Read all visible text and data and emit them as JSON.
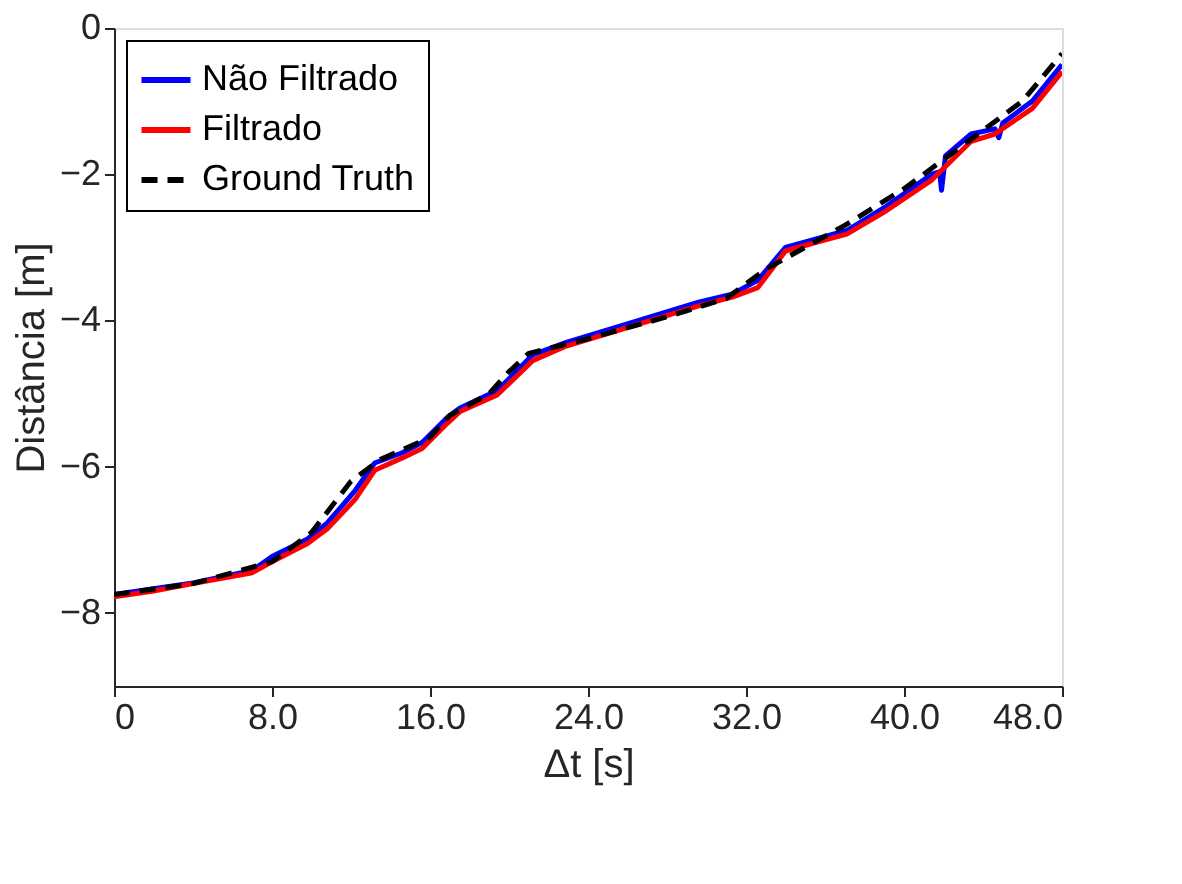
{
  "chart_data": {
    "type": "line",
    "xlabel": "Δt [s]",
    "ylabel": "Distância [m]",
    "xlim": [
      0,
      48
    ],
    "xticks": [
      0,
      {
        "value": 8,
        "label": "8.0"
      },
      {
        "value": 16,
        "label": "16.0"
      },
      {
        "value": 24,
        "label": "24.0"
      },
      {
        "value": 32,
        "label": "32.0"
      },
      {
        "value": 40,
        "label": "40.0"
      },
      {
        "value": 48,
        "label": "48.0"
      }
    ],
    "ylim": [
      -9,
      0
    ],
    "yticks": [
      -8,
      -6,
      -4,
      -2,
      0
    ],
    "grid": false,
    "legend": "top left",
    "series": [
      {
        "name": "Não Filtrado",
        "color": "#0000ff",
        "line_style": "solid",
        "x": [
          0,
          2,
          4,
          7,
          8,
          9.8,
          10.8,
          12.2,
          13.2,
          14.6,
          15.6,
          16.9,
          17.5,
          19.4,
          21.2,
          22.9,
          26.2,
          29.6,
          31.3,
          32.6,
          34.0,
          35.6,
          37.1,
          39.1,
          41.4,
          41.8,
          41.9,
          42.1,
          43.4,
          44.6,
          44.8,
          45.0,
          46.5,
          48
        ],
        "values": [
          -7.75,
          -7.67,
          -7.59,
          -7.42,
          -7.23,
          -6.99,
          -6.77,
          -6.33,
          -5.95,
          -5.81,
          -5.67,
          -5.32,
          -5.2,
          -4.96,
          -4.47,
          -4.3,
          -4.03,
          -3.75,
          -3.64,
          -3.45,
          -3.0,
          -2.88,
          -2.77,
          -2.44,
          -2.0,
          -1.97,
          -2.22,
          -1.75,
          -1.45,
          -1.38,
          -1.5,
          -1.3,
          -1.0,
          -0.5
        ]
      },
      {
        "name": "Filtrado",
        "color": "#ff0000",
        "line_style": "solid",
        "x": [
          0,
          2,
          4,
          7,
          8,
          9.8,
          10.8,
          12.2,
          13.2,
          14.6,
          15.6,
          16.9,
          17.5,
          19.4,
          21.2,
          22.9,
          26.2,
          29.6,
          31.3,
          32.6,
          34.0,
          35.6,
          37.1,
          39.1,
          41.4,
          43.4,
          44.6,
          46.5,
          48
        ],
        "values": [
          -7.78,
          -7.7,
          -7.6,
          -7.45,
          -7.3,
          -7.05,
          -6.85,
          -6.45,
          -6.05,
          -5.88,
          -5.75,
          -5.4,
          -5.25,
          -5.02,
          -4.55,
          -4.35,
          -4.08,
          -3.8,
          -3.68,
          -3.55,
          -3.05,
          -2.93,
          -2.82,
          -2.5,
          -2.08,
          -1.55,
          -1.45,
          -1.1,
          -0.6
        ]
      },
      {
        "name": "Ground Truth",
        "color": "#000000",
        "line_style": "dashed",
        "x": [
          0,
          4,
          8,
          10,
          12,
          13.5,
          16,
          17,
          19,
          20,
          21,
          24,
          28,
          31,
          33,
          35,
          37,
          40,
          42,
          44,
          46,
          48
        ],
        "values": [
          -7.75,
          -7.6,
          -7.3,
          -6.9,
          -6.2,
          -5.9,
          -5.6,
          -5.3,
          -5.0,
          -4.7,
          -4.45,
          -4.25,
          -3.95,
          -3.7,
          -3.3,
          -3.0,
          -2.7,
          -2.2,
          -1.8,
          -1.4,
          -1.0,
          -0.35
        ]
      }
    ]
  }
}
